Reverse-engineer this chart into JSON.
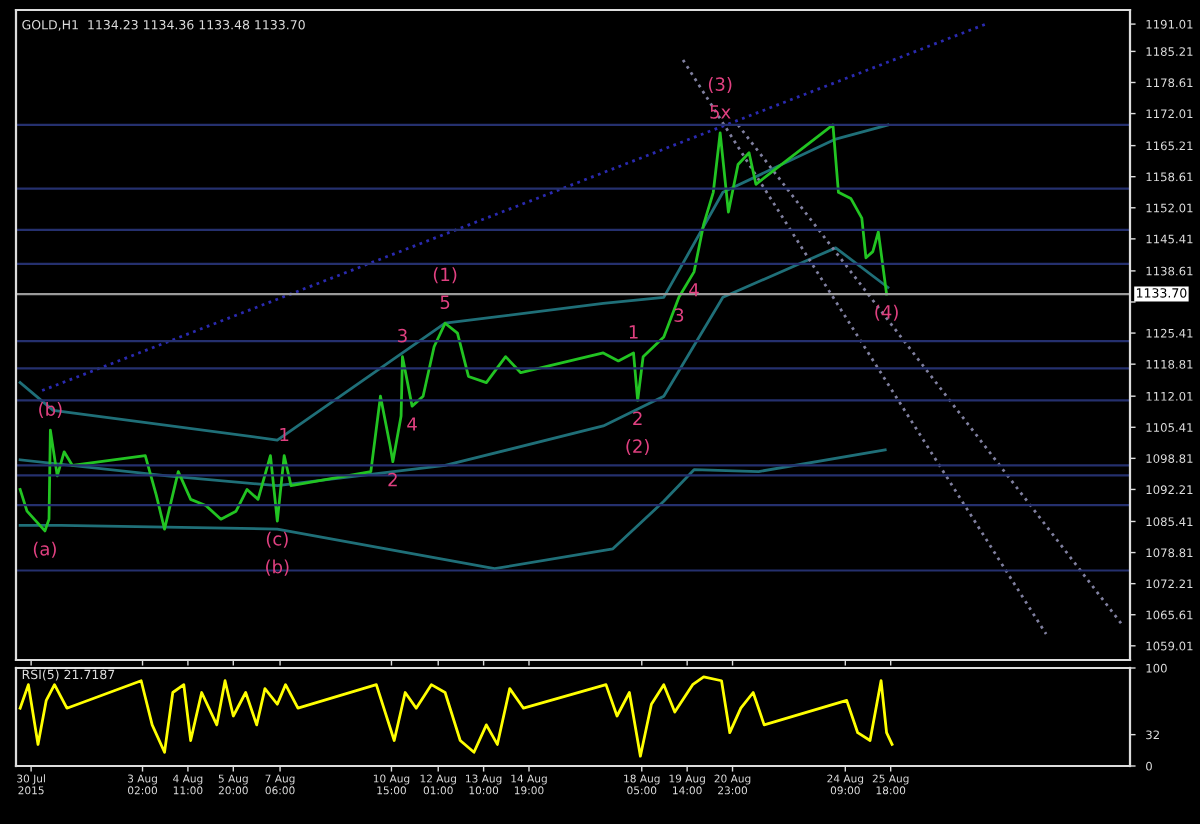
{
  "chart_data": [
    {
      "type": "line",
      "title": "GOLD,H1  1134.23 1134.36 1133.48 1133.70",
      "xlim": [
        "2015-07-30T06:00",
        "2015-09-02T00:00"
      ],
      "ylim": [
        1056,
        1194
      ],
      "yticks": [
        1059.01,
        1065.61,
        1072.21,
        1078.81,
        1085.41,
        1092.21,
        1098.81,
        1105.41,
        1112.01,
        1118.81,
        1125.41,
        {
          "value": 1132.01,
          "label": null
        },
        1138.61,
        1145.41,
        1152.01,
        1158.61,
        1165.21,
        1172.01,
        1178.61,
        1185.21,
        1191.01
      ],
      "xticks": [
        {
          "value": "2015-07-30T17:00",
          "label": null
        },
        {
          "value": "2015-08-03T02:00",
          "label": null
        },
        {
          "value": "2015-08-04T11:00",
          "label": null
        },
        {
          "value": "2015-08-05T20:00",
          "label": null
        },
        {
          "value": "2015-08-07T06:00",
          "label": null
        },
        {
          "value": "2015-08-10T15:00",
          "label": null
        },
        {
          "value": "2015-08-12T01:00",
          "label": null
        },
        {
          "value": "2015-08-13T10:00",
          "label": null
        },
        {
          "value": "2015-08-14T19:00",
          "label": null
        },
        {
          "value": "2015-08-18T05:00",
          "label": null
        },
        {
          "value": "2015-08-19T14:00",
          "label": null
        },
        {
          "value": "2015-08-20T23:00",
          "label": null
        },
        {
          "value": "2015-08-24T09:00",
          "label": null
        },
        {
          "value": "2015-08-25T18:00",
          "label": null
        }
      ],
      "tick_labels": "y",
      "series": [
        {
          "color": "#1f6f78",
          "line_style": "solid",
          "x": [
            "2015-07-30T09:00",
            "2015-07-31T09:00",
            "2015-08-07T04:00",
            "2015-08-12T06:00",
            "2015-08-17T01:00",
            "2015-08-18T21:00",
            "2015-08-20T16:00",
            "2015-08-24T02:00",
            "2015-08-25T16:00"
          ],
          "values": [
            1114.9,
            1109.0,
            1102.7,
            1127.5,
            1131.7,
            1133.0,
            1155.3,
            1166.6,
            1169.6
          ]
        },
        {
          "color": "#1f6f78",
          "line_style": "solid",
          "x": [
            "2015-07-30T09:00",
            "2015-08-03T20:00",
            "2015-08-07T04:00",
            "2015-08-12T06:00",
            "2015-08-17T01:00",
            "2015-08-18T21:00",
            "2015-08-20T16:00",
            "2015-08-24T02:00",
            "2015-08-25T16:00"
          ],
          "values": [
            1098.5,
            1095.1,
            1093.0,
            1097.3,
            1105.7,
            1112.0,
            1133.0,
            1143.5,
            1135.1
          ]
        },
        {
          "color": "#1f6f78",
          "line_style": "solid",
          "x": [
            "2015-07-30T09:00",
            "2015-07-31T15:00",
            "2015-08-07T04:00",
            "2015-08-13T18:00",
            "2015-08-17T08:00",
            "2015-08-18T21:00",
            "2015-08-19T19:00",
            "2015-08-21T18:00",
            "2015-08-25T14:00"
          ],
          "values": [
            1084.6,
            1084.6,
            1083.8,
            1075.4,
            1079.6,
            1089.7,
            1096.4,
            1096.0,
            1100.6
          ]
        },
        {
          "color": "#2a2ab0",
          "line_style": "dotted",
          "x": [
            "2015-07-31T01:00",
            "2015-08-28T15:00"
          ],
          "values": [
            1113.2,
            1191.0
          ]
        },
        {
          "color": "#8080a0",
          "line_style": "dotted",
          "x": [
            "2015-08-19T11:00",
            "2015-08-30T11:00"
          ],
          "values": [
            1183.4,
            1061.5
          ]
        },
        {
          "color": "#8080a0",
          "line_style": "dotted",
          "x": [
            "2015-08-21T03:00",
            "2015-09-01T18:00"
          ],
          "values": [
            1169.6,
            1063.6
          ]
        },
        {
          "color": "#22c422",
          "line_style": "solid",
          "x": [
            "2015-07-30T09:00",
            "2015-07-30T14:00",
            "2015-07-31T03:00",
            "2015-07-31T06:00",
            "2015-07-31T07:00",
            "2015-07-31T12:00",
            "2015-07-31T17:00",
            "2015-07-31T23:00",
            "2015-08-03T04:00",
            "2015-08-03T12:00",
            "2015-08-03T18:00",
            "2015-08-04T04:00",
            "2015-08-04T13:00",
            "2015-08-05T00:00",
            "2015-08-05T11:00",
            "2015-08-05T22:00",
            "2015-08-06T06:00",
            "2015-08-06T14:00",
            "2015-08-06T23:00",
            "2015-08-07T04:00",
            "2015-08-07T09:00",
            "2015-08-07T14:00",
            "2015-08-10T00:00",
            "2015-08-10T07:00",
            "2015-08-10T14:00",
            "2015-08-10T16:00",
            "2015-08-10T22:00",
            "2015-08-10T23:00",
            "2015-08-11T06:00",
            "2015-08-11T14:00",
            "2015-08-11T22:00",
            "2015-08-12T06:00",
            "2015-08-12T15:00",
            "2015-08-12T23:00",
            "2015-08-13T12:00",
            "2015-08-14T02:00",
            "2015-08-14T13:00",
            "2015-08-17T01:00",
            "2015-08-17T12:00",
            "2015-08-17T23:00",
            "2015-08-18T02:00",
            "2015-08-18T06:00",
            "2015-08-18T21:00",
            "2015-08-19T08:00",
            "2015-08-19T19:00",
            "2015-08-20T02:00",
            "2015-08-20T09:00",
            "2015-08-20T14:00",
            "2015-08-20T20:00",
            "2015-08-21T03:00",
            "2015-08-21T11:00",
            "2015-08-21T16:00",
            "2015-08-24T00:00",
            "2015-08-24T04:00",
            "2015-08-24T13:00",
            "2015-08-24T21:00",
            "2015-08-25T00:00",
            "2015-08-25T05:00",
            "2015-08-25T09:00",
            "2015-08-25T15:00"
          ],
          "values": [
            1092.2,
            1087.6,
            1083.4,
            1085.9,
            1104.8,
            1095.1,
            1100.2,
            1097.3,
            1099.4,
            1091.0,
            1083.8,
            1096.0,
            1090.1,
            1088.8,
            1085.9,
            1087.6,
            1092.2,
            1090.1,
            1099.4,
            1085.5,
            1099.4,
            1093.0,
            1096.0,
            1112.0,
            1101.5,
            1098.1,
            1107.8,
            1120.4,
            1109.9,
            1112.0,
            1122.5,
            1127.5,
            1125.4,
            1116.2,
            1114.9,
            1120.4,
            1117.0,
            1121.2,
            1119.5,
            1121.2,
            1111.1,
            1120.4,
            1124.6,
            1133.0,
            1138.4,
            1148.5,
            1155.3,
            1167.9,
            1151.1,
            1161.2,
            1163.7,
            1157.0,
            1169.6,
            1155.3,
            1154.0,
            1149.8,
            1141.4,
            1142.7,
            1146.9,
            1133.7
          ]
        }
      ],
      "ref_lines": [
        {
          "axis": "y",
          "value": 1169.6,
          "color": "#25306e"
        },
        {
          "axis": "y",
          "value": 1156.1,
          "color": "#25306e"
        },
        {
          "axis": "y",
          "value": 1147.3,
          "color": "#25306e"
        },
        {
          "axis": "y",
          "value": 1140.1,
          "color": "#25306e"
        },
        {
          "axis": "y",
          "value": 1123.7,
          "color": "#25306e"
        },
        {
          "axis": "y",
          "value": 1117.9,
          "color": "#25306e"
        },
        {
          "axis": "y",
          "value": 1111.1,
          "color": "#25306e"
        },
        {
          "axis": "y",
          "value": 1097.3,
          "color": "#25306e"
        },
        {
          "axis": "y",
          "value": 1095.2,
          "color": "#25306e"
        },
        {
          "axis": "y",
          "value": 1088.9,
          "color": "#25306e"
        },
        {
          "axis": "y",
          "value": 1075.0,
          "color": "#25306e"
        },
        {
          "axis": "y",
          "value": 1133.7,
          "color": "#9a9a9a",
          "label": "1133.70"
        }
      ],
      "annotations": [
        {
          "text": "(a)",
          "x": "2015-07-31T03:00",
          "y": 1083.4
        },
        {
          "text": "(b)",
          "x": "2015-07-31T07:00",
          "y": 1104.8
        },
        {
          "text": "(c)",
          "x": "2015-08-07T04:00",
          "y": 1085.5
        },
        {
          "text": "(b)",
          "x": "2015-08-07T04:00",
          "y": 1085.5
        },
        {
          "text": "1",
          "x": "2015-08-07T09:00",
          "y": 1099.4
        },
        {
          "text": "2",
          "x": "2015-08-10T16:00",
          "y": 1098.1
        },
        {
          "text": "3",
          "x": "2015-08-10T23:00",
          "y": 1120.4
        },
        {
          "text": "4",
          "x": "2015-08-11T06:00",
          "y": 1109.9
        },
        {
          "text": "5",
          "x": "2015-08-12T06:00",
          "y": 1127.5
        },
        {
          "text": "(1)",
          "x": "2015-08-12T06:00",
          "y": 1127.5
        },
        {
          "text": "1",
          "x": "2015-08-17T23:00",
          "y": 1121.2
        },
        {
          "text": "2",
          "x": "2015-08-18T02:00",
          "y": 1111.1
        },
        {
          "text": "(2)",
          "x": "2015-08-18T02:00",
          "y": 1111.1
        },
        {
          "text": "3",
          "x": "2015-08-19T08:00",
          "y": 1133.0
        },
        {
          "text": "4",
          "x": "2015-08-19T19:00",
          "y": 1138.4
        },
        {
          "text": "5x",
          "x": "2015-08-20T14:00",
          "y": 1167.9
        },
        {
          "text": "(3)",
          "x": "2015-08-20T14:00",
          "y": 1167.9
        },
        {
          "text": "(4)",
          "x": "2015-08-25T15:00",
          "y": 1133.7
        }
      ]
    },
    {
      "type": "line",
      "title": "RSI(5) 21.7187",
      "xlim": [
        "2015-07-30T06:00",
        "2015-09-02T00:00"
      ],
      "ylim": [
        0,
        100
      ],
      "yticks": [
        0,
        32,
        100
      ],
      "xticks": [
        {
          "value": "2015-07-30T17:00",
          "label": "30 Jul 2015"
        },
        {
          "value": "2015-08-03T02:00",
          "label": "3 Aug 02:00"
        },
        {
          "value": "2015-08-04T11:00",
          "label": "4 Aug 11:00"
        },
        {
          "value": "2015-08-05T20:00",
          "label": "5 Aug 20:00"
        },
        {
          "value": "2015-08-07T06:00",
          "label": "7 Aug 06:00"
        },
        {
          "value": "2015-08-10T15:00",
          "label": "10 Aug 15:00"
        },
        {
          "value": "2015-08-12T01:00",
          "label": "12 Aug 01:00"
        },
        {
          "value": "2015-08-13T10:00",
          "label": "13 Aug 10:00"
        },
        {
          "value": "2015-08-14T19:00",
          "label": "14 Aug 19:00"
        },
        {
          "value": "2015-08-18T05:00",
          "label": "18 Aug 05:00"
        },
        {
          "value": "2015-08-19T14:00",
          "label": "19 Aug 14:00"
        },
        {
          "value": "2015-08-20T23:00",
          "label": "20 Aug 23:00"
        },
        {
          "value": "2015-08-24T09:00",
          "label": "24 Aug 09:00"
        },
        {
          "value": "2015-08-25T18:00",
          "label": "25 Aug 18:00"
        }
      ],
      "series": [
        {
          "color": "#ffff00",
          "line_style": "solid",
          "x": [
            "2015-07-30T09:00",
            "2015-07-30T15:00",
            "2015-07-30T22:00",
            "2015-07-31T04:00",
            "2015-07-31T10:00",
            "2015-07-31T19:00",
            "2015-08-03T01:00",
            "2015-08-03T09:00",
            "2015-08-03T18:00",
            "2015-08-04T00:00",
            "2015-08-04T08:00",
            "2015-08-04T13:00",
            "2015-08-04T21:00",
            "2015-08-05T08:00",
            "2015-08-05T14:00",
            "2015-08-05T20:00",
            "2015-08-06T05:00",
            "2015-08-06T13:00",
            "2015-08-06T19:00",
            "2015-08-07T04:00",
            "2015-08-07T10:00",
            "2015-08-07T19:00",
            "2015-08-10T04:00",
            "2015-08-10T17:00",
            "2015-08-11T01:00",
            "2015-08-11T09:00",
            "2015-08-11T20:00",
            "2015-08-12T06:00",
            "2015-08-12T17:00",
            "2015-08-13T03:00",
            "2015-08-13T12:00",
            "2015-08-13T20:00",
            "2015-08-14T05:00",
            "2015-08-14T15:00",
            "2015-08-17T03:00",
            "2015-08-17T11:00",
            "2015-08-17T20:00",
            "2015-08-18T04:00",
            "2015-08-18T12:00",
            "2015-08-18T21:00",
            "2015-08-19T05:00",
            "2015-08-19T18:00",
            "2015-08-20T02:00",
            "2015-08-20T15:00",
            "2015-08-20T21:00",
            "2015-08-21T05:00",
            "2015-08-21T14:00",
            "2015-08-21T22:00",
            "2015-08-24T10:00",
            "2015-08-24T18:00",
            "2015-08-25T03:00",
            "2015-08-25T11:00",
            "2015-08-25T15:00",
            "2015-08-25T19:00"
          ],
          "values": [
            59,
            83,
            22,
            67,
            83,
            59,
            87,
            42,
            14,
            75,
            83,
            26,
            75,
            42,
            87,
            51,
            75,
            42,
            79,
            63,
            83,
            59,
            83,
            26,
            75,
            59,
            83,
            75,
            26,
            14,
            42,
            22,
            79,
            59,
            83,
            51,
            75,
            10,
            63,
            83,
            55,
            83,
            91,
            87,
            34,
            59,
            75,
            42,
            67,
            34,
            26,
            87,
            34,
            22
          ]
        }
      ]
    }
  ]
}
